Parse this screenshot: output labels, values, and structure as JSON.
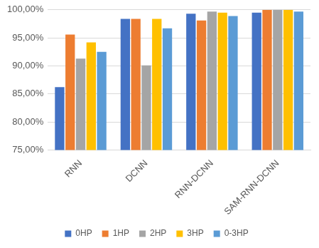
{
  "chart_data": {
    "type": "bar",
    "categories": [
      "RNN",
      "DCNN",
      "RNN-DCNN",
      "SAM-RNN-DCNN"
    ],
    "series": [
      {
        "name": "0HP",
        "color": "#4472c4",
        "values": [
          86.2,
          98.4,
          99.3,
          99.5
        ]
      },
      {
        "name": "1HP",
        "color": "#ed7d31",
        "values": [
          95.6,
          98.4,
          98.1,
          100
        ]
      },
      {
        "name": "2HP",
        "color": "#a5a5a5",
        "values": [
          91.3,
          90.1,
          99.7,
          100
        ]
      },
      {
        "name": "3HP",
        "color": "#ffc000",
        "values": [
          94.2,
          98.4,
          99.5,
          100
        ]
      },
      {
        "name": "0-3HP",
        "color": "#5b9bd5",
        "values": [
          92.5,
          96.7,
          98.9,
          99.7
        ]
      }
    ],
    "ylim": [
      75,
      100
    ],
    "yticks": [
      {
        "value": 75,
        "label": "75,00%"
      },
      {
        "value": 80,
        "label": "80,00%"
      },
      {
        "value": 85,
        "label": "85,00%"
      },
      {
        "value": 90,
        "label": "90,00%"
      },
      {
        "value": 95,
        "label": "95,00%"
      },
      {
        "value": 100,
        "label": "100,00%"
      }
    ],
    "grid": true,
    "legend": "bottom"
  }
}
